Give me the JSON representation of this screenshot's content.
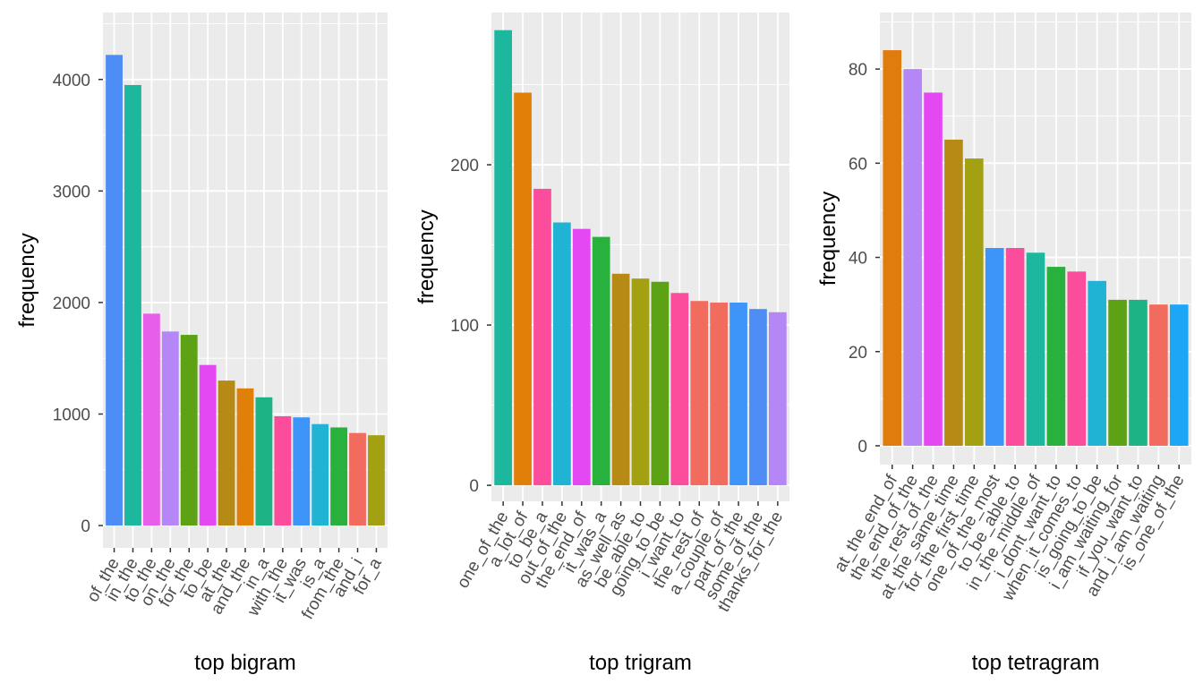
{
  "chart_data": [
    {
      "type": "bar",
      "xlabel": "top bigram",
      "ylabel": "frequency",
      "ylim": [
        0,
        4400
      ],
      "yticks": [
        0,
        1000,
        2000,
        3000,
        4000
      ],
      "grid": true,
      "legend": "none",
      "categories": [
        "of_the",
        "in_the",
        "to_the",
        "on_the",
        "for_the",
        "to_be",
        "at_the",
        "and_the",
        "in_a",
        "with_the",
        "it_was",
        "is_a",
        "from_the",
        "and_i",
        "for_a"
      ],
      "values": [
        4220,
        3950,
        1900,
        1740,
        1710,
        1440,
        1300,
        1230,
        1150,
        980,
        970,
        910,
        880,
        830,
        810
      ],
      "colors": [
        "#4E8DF5",
        "#1DB79E",
        "#E75EEB",
        "#B586F5",
        "#5DA215",
        "#E448F2",
        "#B78A15",
        "#E08009",
        "#1DB384",
        "#FC4C9C",
        "#3D94F9",
        "#21B3D3",
        "#28B13C",
        "#F26B5F",
        "#A3A012"
      ]
    },
    {
      "type": "bar",
      "xlabel": "top trigram",
      "ylabel": "frequency",
      "ylim": [
        0,
        285
      ],
      "yticks": [
        0,
        100,
        200
      ],
      "grid": true,
      "legend": "none",
      "categories": [
        "one_of_the",
        "a_lot_of",
        "to_be_a",
        "out_of_the",
        "the_end_of",
        "it_was_a",
        "as_well_as",
        "be_able_to",
        "going_to_be",
        "i_want_to",
        "the_rest_of",
        "a_couple_of",
        "part_of_the",
        "some_of_the",
        "thanks_for_the"
      ],
      "values": [
        284,
        245,
        185,
        164,
        160,
        155,
        132,
        129,
        127,
        120,
        115,
        114,
        114,
        110,
        108
      ],
      "colors": [
        "#1DB79E",
        "#E08009",
        "#FC4C9C",
        "#21B3D3",
        "#E448F2",
        "#28B13C",
        "#B78A15",
        "#A3A012",
        "#5DA215",
        "#FC4C9C",
        "#F26B5F",
        "#F26B5F",
        "#3D94F9",
        "#4E8DF5",
        "#B586F5"
      ]
    },
    {
      "type": "bar",
      "xlabel": "top tetragram",
      "ylabel": "frequency",
      "ylim": [
        0,
        88
      ],
      "yticks": [
        0,
        20,
        40,
        60,
        80
      ],
      "grid": true,
      "legend": "none",
      "categories": [
        "at_the_end_of",
        "the_end_of_the",
        "the_rest_of_the",
        "at_the_same_time",
        "for_the_first_time",
        "one_of_the_most",
        "to_be_able_to",
        "in_the_middle_of",
        "i_dont_want_to",
        "when_it_comes_to",
        "is_going_to_be",
        "i_am_waiting_for",
        "if_you_want_to",
        "and_i_am_waiting",
        "is_one_of_the"
      ],
      "values": [
        84,
        80,
        75,
        65,
        61,
        42,
        42,
        41,
        38,
        37,
        35,
        31,
        31,
        30,
        30
      ],
      "colors": [
        "#E07B0D",
        "#B586F5",
        "#E448F2",
        "#B78A15",
        "#A3A012",
        "#3D94F9",
        "#FC4C9C",
        "#1DB79E",
        "#28B13C",
        "#FC4C9C",
        "#21B3D3",
        "#5DA215",
        "#1DB384",
        "#F26B5F",
        "#1CA6F5"
      ]
    }
  ]
}
